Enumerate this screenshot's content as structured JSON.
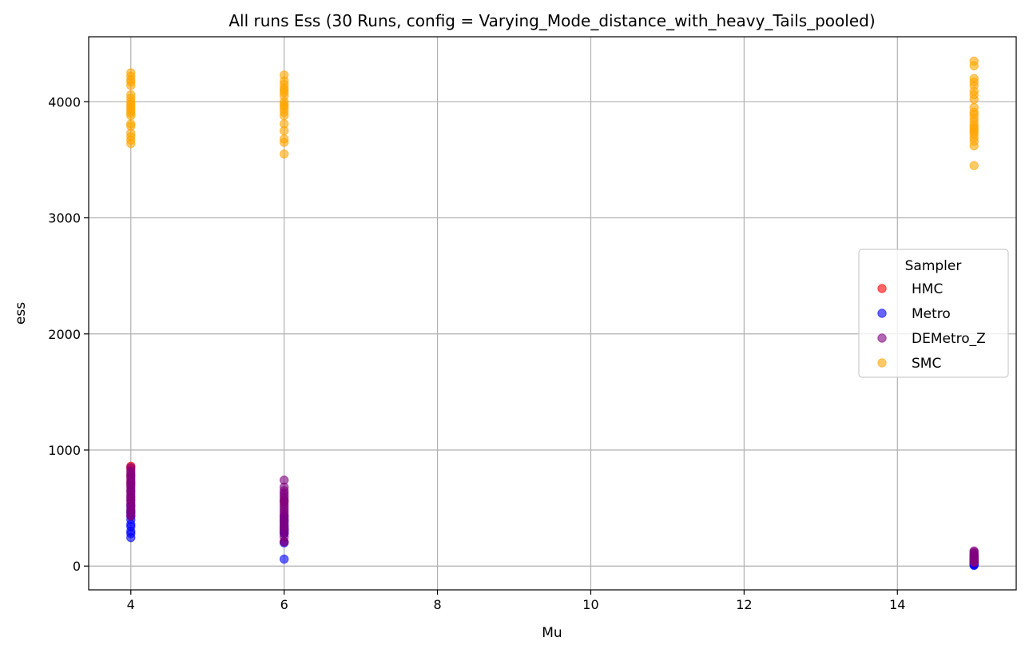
{
  "chart_data": {
    "type": "scatter",
    "title": "All runs Ess (30 Runs, config = Varying_Mode_distance_with_heavy_Tails_pooled)",
    "xlabel": "Mu",
    "ylabel": "ess",
    "xlim": [
      3.45,
      15.55
    ],
    "ylim": [
      -205,
      4560
    ],
    "x_ticks": [
      4,
      6,
      8,
      10,
      12,
      14
    ],
    "y_ticks": [
      0,
      1000,
      2000,
      3000,
      4000
    ],
    "grid": true,
    "legend": {
      "title": "Sampler",
      "placement": "right"
    },
    "marker_alpha": 0.6,
    "series": [
      {
        "name": "HMC",
        "color": "#ff0000",
        "points": [
          [
            4,
            860
          ],
          [
            4,
            840
          ],
          [
            4,
            780
          ],
          [
            4,
            720
          ],
          [
            6,
            560
          ],
          [
            6,
            320
          ],
          [
            6,
            280
          ],
          [
            6,
            210
          ],
          [
            15,
            60
          ],
          [
            15,
            40
          ],
          [
            15,
            20
          ]
        ]
      },
      {
        "name": "Metro",
        "color": "#0000ff",
        "points": [
          [
            4,
            245
          ],
          [
            4,
            280
          ],
          [
            4,
            300
          ],
          [
            4,
            340
          ],
          [
            4,
            360
          ],
          [
            4,
            400
          ],
          [
            4,
            430
          ],
          [
            4,
            460
          ],
          [
            4,
            480
          ],
          [
            4,
            520
          ],
          [
            6,
            60
          ],
          [
            6,
            200
          ],
          [
            6,
            280
          ],
          [
            6,
            300
          ],
          [
            6,
            310
          ],
          [
            6,
            330
          ],
          [
            6,
            350
          ],
          [
            6,
            380
          ],
          [
            6,
            400
          ],
          [
            6,
            430
          ],
          [
            15,
            5
          ],
          [
            15,
            10
          ],
          [
            15,
            15
          ],
          [
            15,
            20
          ],
          [
            15,
            25
          ],
          [
            15,
            30
          ],
          [
            15,
            40
          ],
          [
            15,
            45
          ],
          [
            15,
            50
          ],
          [
            15,
            60
          ]
        ]
      },
      {
        "name": "DEMetro_Z",
        "color": "#800080",
        "points": [
          [
            4,
            850
          ],
          [
            4,
            820
          ],
          [
            4,
            800
          ],
          [
            4,
            780
          ],
          [
            4,
            760
          ],
          [
            4,
            740
          ],
          [
            4,
            720
          ],
          [
            4,
            700
          ],
          [
            4,
            690
          ],
          [
            4,
            670
          ],
          [
            4,
            650
          ],
          [
            4,
            640
          ],
          [
            4,
            620
          ],
          [
            4,
            600
          ],
          [
            4,
            590
          ],
          [
            4,
            570
          ],
          [
            4,
            560
          ],
          [
            4,
            540
          ],
          [
            4,
            520
          ],
          [
            4,
            500
          ],
          [
            4,
            480
          ],
          [
            4,
            460
          ],
          [
            4,
            440
          ],
          [
            4,
            430
          ],
          [
            6,
            740
          ],
          [
            6,
            680
          ],
          [
            6,
            650
          ],
          [
            6,
            630
          ],
          [
            6,
            610
          ],
          [
            6,
            590
          ],
          [
            6,
            570
          ],
          [
            6,
            550
          ],
          [
            6,
            530
          ],
          [
            6,
            510
          ],
          [
            6,
            490
          ],
          [
            6,
            470
          ],
          [
            6,
            450
          ],
          [
            6,
            430
          ],
          [
            6,
            410
          ],
          [
            6,
            390
          ],
          [
            6,
            370
          ],
          [
            6,
            350
          ],
          [
            6,
            330
          ],
          [
            6,
            310
          ],
          [
            6,
            290
          ],
          [
            6,
            250
          ],
          [
            6,
            210
          ],
          [
            15,
            130
          ],
          [
            15,
            120
          ],
          [
            15,
            110
          ],
          [
            15,
            100
          ],
          [
            15,
            95
          ],
          [
            15,
            90
          ],
          [
            15,
            85
          ],
          [
            15,
            80
          ],
          [
            15,
            75
          ],
          [
            15,
            70
          ],
          [
            15,
            65
          ],
          [
            15,
            60
          ],
          [
            15,
            55
          ],
          [
            15,
            50
          ],
          [
            15,
            45
          ],
          [
            15,
            40
          ],
          [
            15,
            35
          ],
          [
            15,
            30
          ]
        ]
      },
      {
        "name": "SMC",
        "color": "#ffa500",
        "points": [
          [
            4,
            4250
          ],
          [
            4,
            4220
          ],
          [
            4,
            4190
          ],
          [
            4,
            4170
          ],
          [
            4,
            4140
          ],
          [
            4,
            4060
          ],
          [
            4,
            4030
          ],
          [
            4,
            4000
          ],
          [
            4,
            3980
          ],
          [
            4,
            3960
          ],
          [
            4,
            3940
          ],
          [
            4,
            3920
          ],
          [
            4,
            3900
          ],
          [
            4,
            3880
          ],
          [
            4,
            3810
          ],
          [
            4,
            3790
          ],
          [
            4,
            3730
          ],
          [
            4,
            3700
          ],
          [
            4,
            3670
          ],
          [
            4,
            3640
          ],
          [
            6,
            4230
          ],
          [
            6,
            4180
          ],
          [
            6,
            4150
          ],
          [
            6,
            4120
          ],
          [
            6,
            4100
          ],
          [
            6,
            4080
          ],
          [
            6,
            4050
          ],
          [
            6,
            4000
          ],
          [
            6,
            3980
          ],
          [
            6,
            3960
          ],
          [
            6,
            3940
          ],
          [
            6,
            3910
          ],
          [
            6,
            3880
          ],
          [
            6,
            3810
          ],
          [
            6,
            3750
          ],
          [
            6,
            3680
          ],
          [
            6,
            3650
          ],
          [
            6,
            3550
          ],
          [
            15,
            4350
          ],
          [
            15,
            4310
          ],
          [
            15,
            4200
          ],
          [
            15,
            4170
          ],
          [
            15,
            4140
          ],
          [
            15,
            4090
          ],
          [
            15,
            4060
          ],
          [
            15,
            4020
          ],
          [
            15,
            3950
          ],
          [
            15,
            3910
          ],
          [
            15,
            3890
          ],
          [
            15,
            3860
          ],
          [
            15,
            3830
          ],
          [
            15,
            3800
          ],
          [
            15,
            3780
          ],
          [
            15,
            3760
          ],
          [
            15,
            3740
          ],
          [
            15,
            3720
          ],
          [
            15,
            3690
          ],
          [
            15,
            3660
          ],
          [
            15,
            3620
          ],
          [
            15,
            3450
          ]
        ]
      }
    ]
  }
}
